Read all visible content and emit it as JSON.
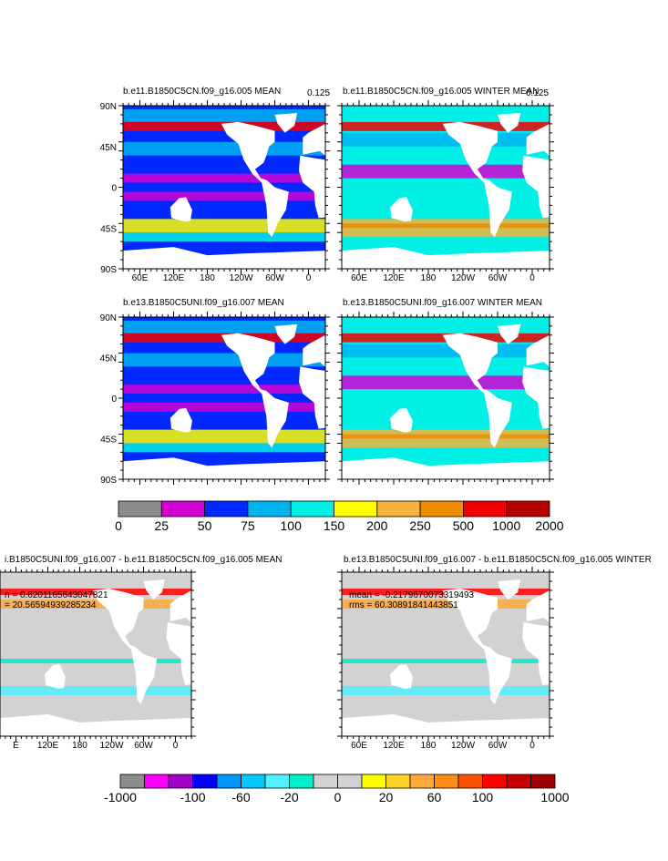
{
  "figure": {
    "ocean_land_color": "#ffffff",
    "coast_color": "#000000"
  },
  "chart_data": [
    {
      "type": "heatmap",
      "title": "b.e11.B1850C5CN.f09_g16.005 MEAN",
      "corner_label": "0.125",
      "xlim": [
        30,
        390
      ],
      "ylim": [
        -90,
        90
      ],
      "x_ticks": [
        "60E",
        "120E",
        "180",
        "120W",
        "60W",
        "0"
      ],
      "y_ticks": [
        "90N",
        "45N",
        "0",
        "45S",
        "90S"
      ],
      "colorbar": "absolute"
    },
    {
      "type": "heatmap",
      "title": "b.e11.B1850C5CN.f09_g16.005 WINTER MEAN",
      "corner_label": "0.125",
      "xlim": [
        30,
        390
      ],
      "ylim": [
        -90,
        90
      ],
      "x_ticks": [
        "60E",
        "120E",
        "180",
        "120W",
        "60W",
        "0"
      ],
      "colorbar": "absolute"
    },
    {
      "type": "heatmap",
      "title": "b.e13.B1850C5UNI.f09_g16.007 MEAN",
      "xlim": [
        30,
        390
      ],
      "ylim": [
        -90,
        90
      ],
      "y_ticks": [
        "90N",
        "45N",
        "0",
        "45S",
        "90S"
      ],
      "colorbar": "absolute"
    },
    {
      "type": "heatmap",
      "title": "b.e13.B1850C5UNI.f09_g16.007 WINTER MEAN",
      "xlim": [
        30,
        390
      ],
      "ylim": [
        -90,
        90
      ],
      "colorbar": "absolute"
    },
    {
      "type": "heatmap",
      "title": "i.B1850C5UNI.f09_g16.007 - b.e11.B1850C5CN.f09_g16.005 MEAN",
      "stats": [
        "n = 0.6201165643047821",
        "= 20.56594939285234"
      ],
      "x_ticks": [
        "E",
        "120E",
        "180",
        "120W",
        "60W",
        "0"
      ],
      "colorbar": "difference"
    },
    {
      "type": "heatmap",
      "title": "b.e13.B1850C5UNI.f09_g16.007 - b.e11.B1850C5CN.f09_g16.005 WINTER",
      "stats": [
        "mean = -0.2179670073319493",
        "rms = 60.30891841443851"
      ],
      "x_ticks": [
        "60E",
        "120E",
        "180",
        "120W",
        "60W",
        "0"
      ],
      "colorbar": "difference"
    }
  ],
  "colorbars": {
    "absolute": {
      "colors": [
        "#8c8c8c",
        "#d200d2",
        "#0028ff",
        "#00b4f0",
        "#00f0e6",
        "#ffff00",
        "#f5b43c",
        "#f08c00",
        "#f00000",
        "#b40000"
      ],
      "labels": [
        "0",
        "25",
        "50",
        "75",
        "100",
        "150",
        "200",
        "250",
        "500",
        "1000",
        "2000"
      ]
    },
    "difference": {
      "colors": [
        "#8c8c8c",
        "#ff00ff",
        "#a000c8",
        "#0000ff",
        "#0096ff",
        "#00c8ff",
        "#50f0ff",
        "#00f0c8",
        "#d2d2d2",
        "#d2d2d2",
        "#ffff00",
        "#ffd228",
        "#ffa83c",
        "#ff8c14",
        "#ff5000",
        "#ff0000",
        "#c80000",
        "#a00000"
      ],
      "labels": [
        "-1000",
        "-100",
        "-60",
        "-20",
        "0",
        "20",
        "60",
        "100",
        "1000"
      ]
    }
  }
}
